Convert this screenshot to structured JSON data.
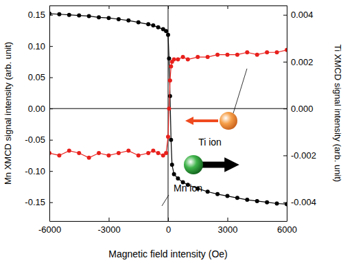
{
  "chart_data": {
    "type": "line",
    "xlabel": "Magnetic field intensity (Oe)",
    "ylabel": "Mn XMCD signal intensity (arb. unit)",
    "y2label": "Ti XMCD signal intensity (arb. unit)",
    "x": [
      -6000,
      -5500,
      -5000,
      -4500,
      -4000,
      -3500,
      -3000,
      -2500,
      -2000,
      -1500,
      -1000,
      -750,
      -500,
      -250,
      -100,
      0,
      50,
      100,
      150,
      200,
      300,
      500,
      750,
      1000,
      1500,
      2000,
      2500,
      3000,
      3500,
      4000,
      4500,
      5000,
      5500,
      6000
    ],
    "xlim": [
      -6000,
      6000
    ],
    "xticks": [
      -6000,
      -3000,
      0,
      3000,
      6000
    ],
    "ylim": [
      -0.18,
      0.165
    ],
    "yticks": [
      {
        "value": -0.15,
        "label": "-0.15"
      },
      {
        "value": -0.1,
        "label": "-0.10"
      },
      {
        "value": -0.05,
        "label": "-0.05"
      },
      {
        "value": 0,
        "label": "0.00"
      },
      {
        "value": 0.05,
        "label": "0.05"
      },
      {
        "value": 0.1,
        "label": "0.10"
      },
      {
        "value": 0.15,
        "label": "0.15"
      }
    ],
    "y2lim": [
      -0.0048,
      0.0044
    ],
    "y2ticks": [
      {
        "value": -0.004,
        "label": "-0.004"
      },
      {
        "value": -0.002,
        "label": "-0.002"
      },
      {
        "value": 0,
        "label": "0.000"
      },
      {
        "value": 0.002,
        "label": "0.002"
      },
      {
        "value": 0.004,
        "label": "0.004"
      }
    ],
    "series": [
      {
        "color": "#000000",
        "marker": "circle",
        "values": [
          0.152,
          0.151,
          0.15,
          0.149,
          0.148,
          0.146,
          0.145,
          0.143,
          0.141,
          0.138,
          0.135,
          0.133,
          0.13,
          0.127,
          0.124,
          0.118,
          0.08,
          0.02,
          -0.05,
          -0.09,
          -0.105,
          -0.112,
          -0.118,
          -0.122,
          -0.128,
          -0.133,
          -0.137,
          -0.14,
          -0.143,
          -0.146,
          -0.148,
          -0.15,
          -0.152,
          -0.153
        ]
      },
      {
        "color": "#e8201c",
        "marker": "circle",
        "axis": "y2",
        "values": [
          -0.0019,
          -0.002,
          -0.0018,
          -0.0019,
          -0.0021,
          -0.0019,
          -0.002,
          -0.0019,
          -0.0018,
          -0.002,
          -0.0019,
          -0.0018,
          -0.0019,
          -0.002,
          -0.0019,
          -0.0012,
          0.0,
          0.0012,
          0.0018,
          0.002,
          0.0021,
          0.0021,
          0.0022,
          0.0021,
          0.0022,
          0.0022,
          0.0023,
          0.0023,
          0.0023,
          0.0024,
          0.0023,
          0.0024,
          0.0024,
          0.0025
        ]
      }
    ],
    "annotations": [
      {
        "text": "Ti ion"
      },
      {
        "text": "Mn ion"
      }
    ]
  }
}
